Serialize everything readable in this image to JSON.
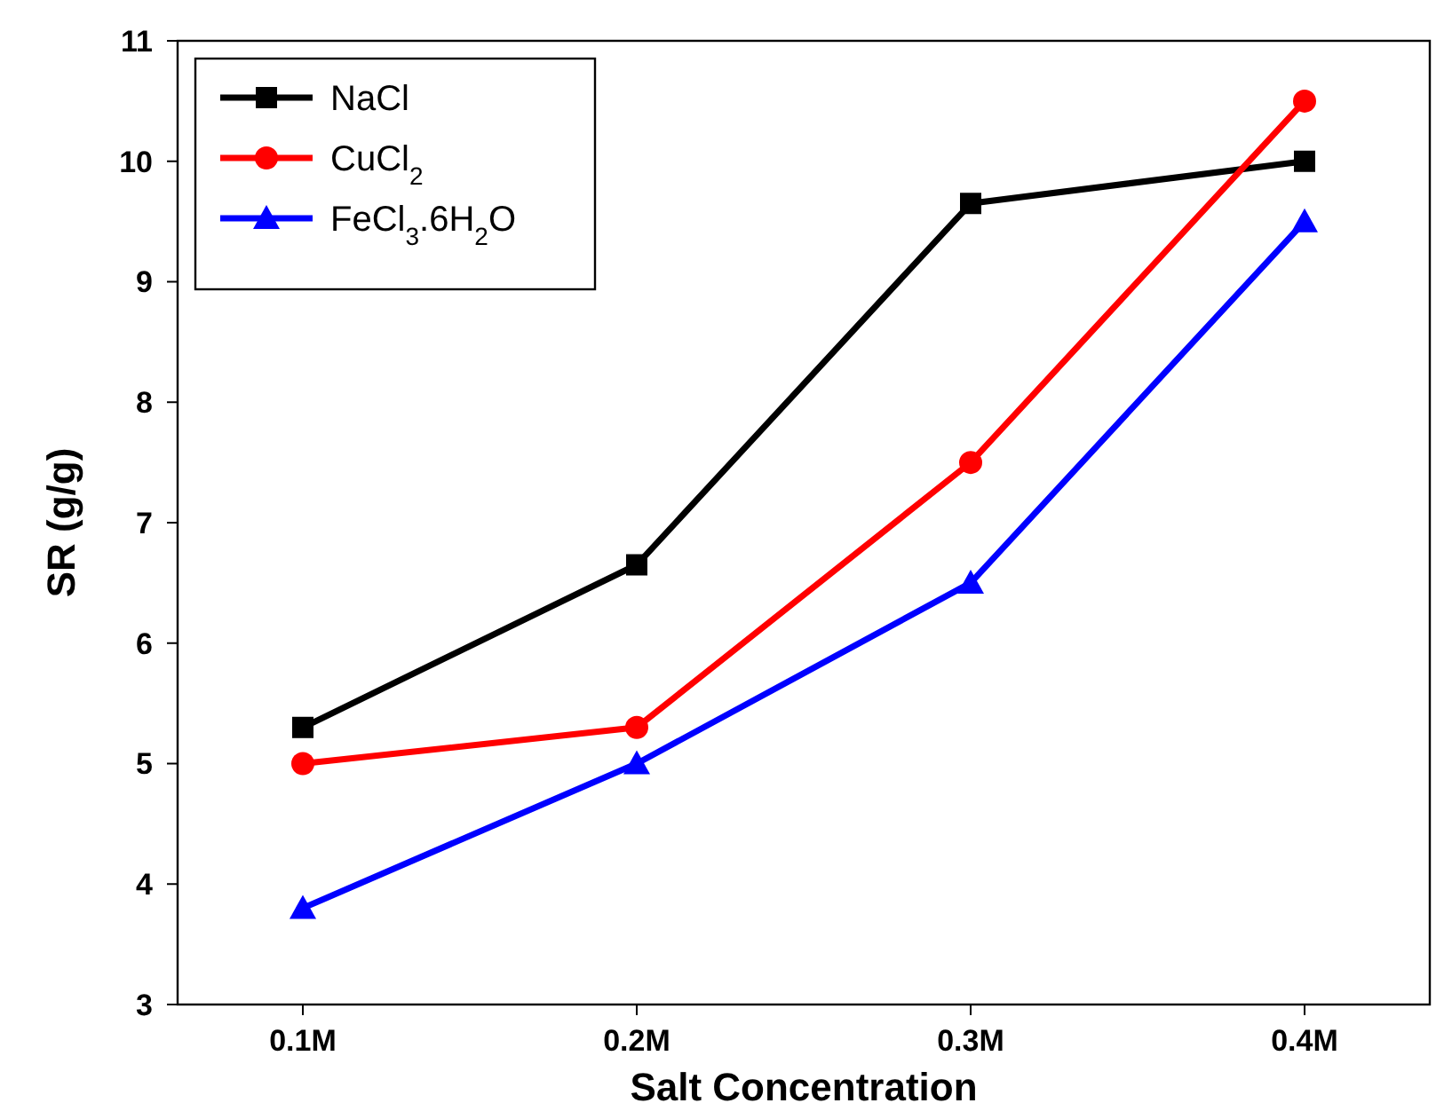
{
  "chart_data": {
    "type": "line",
    "xlabel": "Salt Concentration",
    "ylabel": "SR (g/g)",
    "categories": [
      "0.1M",
      "0.2M",
      "0.3M",
      "0.4M"
    ],
    "ylim": [
      3,
      11
    ],
    "yticks": [
      3,
      4,
      5,
      6,
      7,
      8,
      9,
      10,
      11
    ],
    "grid": false,
    "legend": "top left",
    "line_style": "solid",
    "series": [
      {
        "name": "NaCl",
        "color": "#000000",
        "marker": "square",
        "values": [
          5.3,
          6.65,
          9.65,
          10.0
        ]
      },
      {
        "name": "CuCl$_{2}$",
        "color": "#ff0000",
        "marker": "circle",
        "values": [
          5.0,
          5.3,
          7.5,
          10.5
        ]
      },
      {
        "name": "FeCl$_{3}$.6H$_{2}$O",
        "color": "#0000ff",
        "marker": "triangle",
        "values": [
          3.8,
          5.0,
          6.5,
          9.5
        ]
      }
    ]
  }
}
